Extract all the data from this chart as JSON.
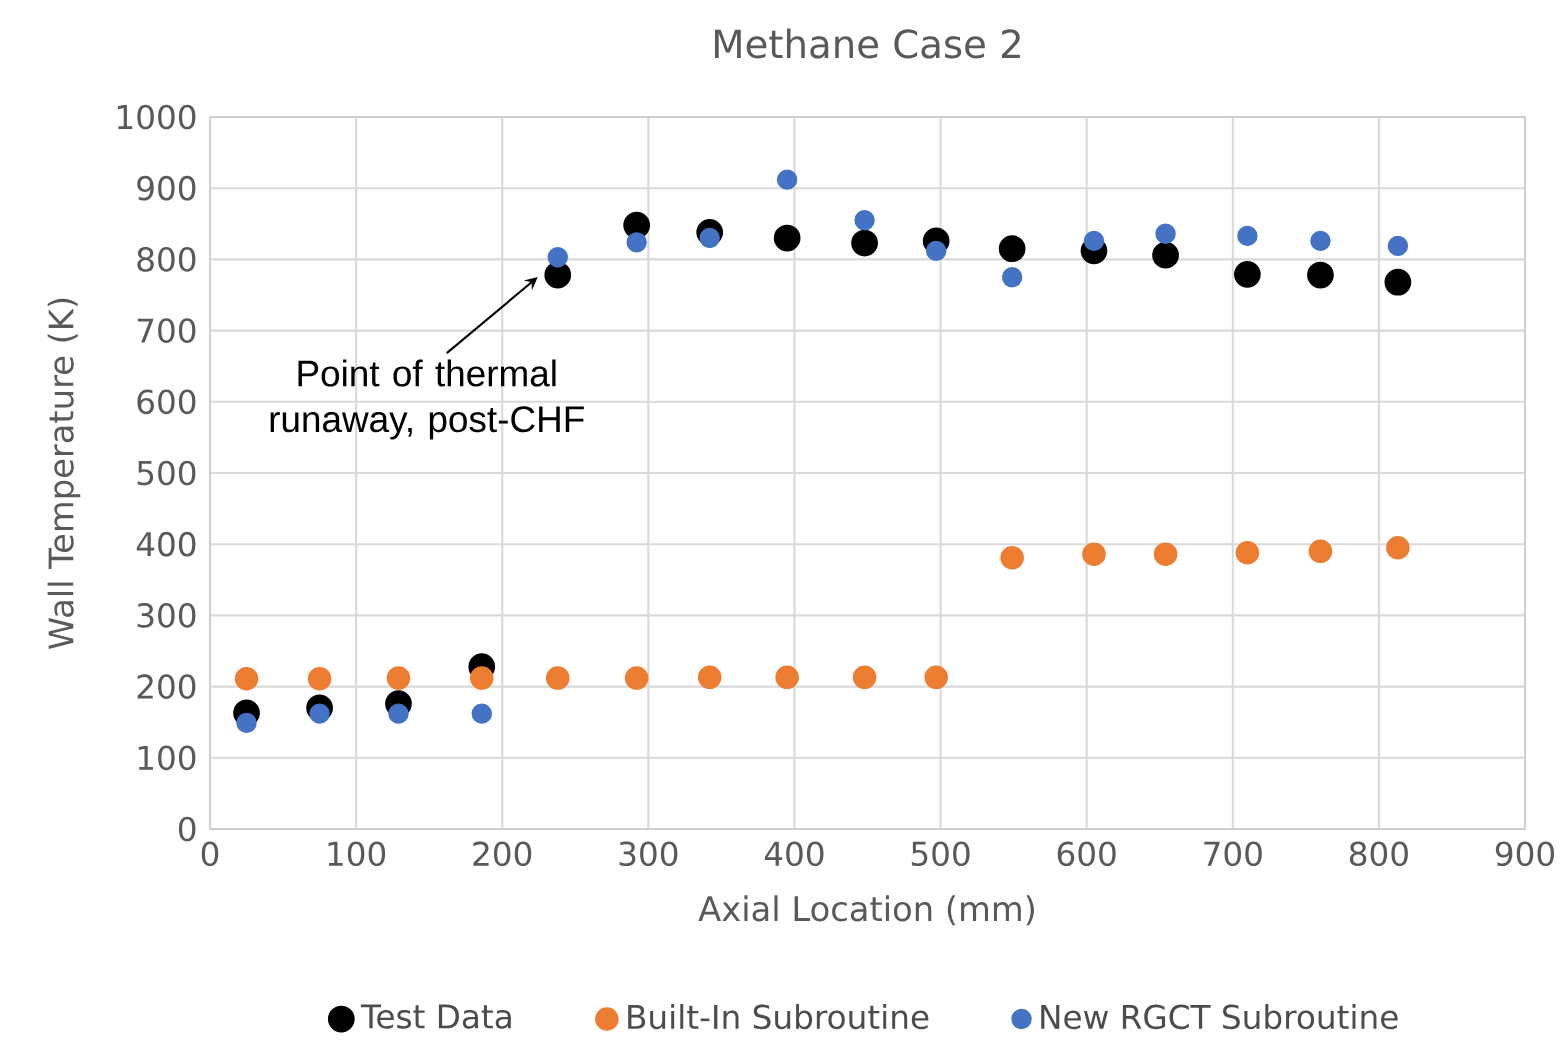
{
  "chart_data": {
    "type": "scatter",
    "title": "Methane Case 2",
    "xlabel": "Axial Location (mm)",
    "ylabel": "Wall Temperature (K)",
    "x": [
      25,
      75,
      129,
      186,
      238,
      292,
      342,
      395,
      448,
      497,
      549,
      605,
      654,
      710,
      760,
      813
    ],
    "series": [
      {
        "name": "Test Data",
        "color": "#000000",
        "values": [
          163,
          170,
          176,
          228,
          778,
          848,
          838,
          830,
          823,
          826,
          815,
          812,
          806,
          779,
          778,
          768
        ]
      },
      {
        "name": "Built-In Subroutine",
        "color": "#ed7d31",
        "values": [
          211,
          211,
          212,
          212,
          212,
          212,
          213,
          213,
          213,
          213,
          381,
          386,
          386,
          388,
          390,
          395
        ]
      },
      {
        "name": "New RGCT Subroutine",
        "color": "#4472c4",
        "values": [
          149,
          162,
          162,
          162,
          803,
          824,
          830,
          912,
          855,
          812,
          775,
          826,
          836,
          833,
          826,
          819
        ]
      }
    ],
    "xlim": [
      0,
      900
    ],
    "xticks": [
      0,
      100,
      200,
      300,
      400,
      500,
      600,
      700,
      800,
      900
    ],
    "ylim": [
      0,
      1000
    ],
    "yticks": [
      0,
      100,
      200,
      300,
      400,
      500,
      600,
      700,
      800,
      900,
      1000
    ],
    "grid": true,
    "legend": "bottom",
    "marker": "circle",
    "annotations": [
      {
        "text": "Point of thermal runaway, post-CHF",
        "x": 238,
        "y": 778
      }
    ]
  }
}
